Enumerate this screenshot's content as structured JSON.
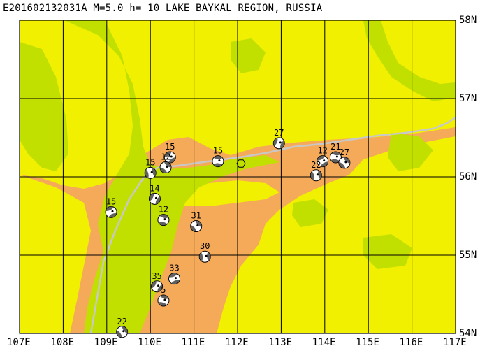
{
  "title": "E201602132031A M=5.0 h= 10 LAKE BAYKAL REGION, RUSSIA",
  "colors": {
    "high": "#f5aa5a",
    "mid": "#f0f000",
    "low": "#c2e000",
    "border": "#c8c8c8",
    "grid": "#000000"
  },
  "axes": {
    "lat_labels": [
      "58N",
      "57N",
      "56N",
      "55N",
      "54N"
    ],
    "lon_labels": [
      "107E",
      "108E",
      "109E",
      "110E",
      "111E",
      "112E",
      "113E",
      "114E",
      "115E",
      "116E",
      "117E"
    ],
    "lon_range": [
      107,
      117
    ],
    "lat_range": [
      54,
      58
    ]
  },
  "epicenter": {
    "lon": 112.08,
    "lat": 56.17,
    "icon": "hexagon-epicenter-icon"
  },
  "events": [
    {
      "label": "15",
      "lon": 110.45,
      "lat": 56.25
    },
    {
      "label": "15",
      "lon": 111.55,
      "lat": 56.2
    },
    {
      "label": "12",
      "lon": 110.35,
      "lat": 56.12
    },
    {
      "label": "15",
      "lon": 110.0,
      "lat": 56.05
    },
    {
      "label": "27",
      "lon": 112.95,
      "lat": 56.43
    },
    {
      "label": "12",
      "lon": 113.95,
      "lat": 56.2
    },
    {
      "label": "21",
      "lon": 114.25,
      "lat": 56.25
    },
    {
      "label": "27",
      "lon": 114.45,
      "lat": 56.18
    },
    {
      "label": "22",
      "lon": 113.8,
      "lat": 56.02
    },
    {
      "label": "14",
      "lon": 110.1,
      "lat": 55.72
    },
    {
      "label": "15",
      "lon": 109.1,
      "lat": 55.55
    },
    {
      "label": "12",
      "lon": 110.3,
      "lat": 55.45
    },
    {
      "label": "31",
      "lon": 111.05,
      "lat": 55.37
    },
    {
      "label": "30",
      "lon": 111.25,
      "lat": 54.98
    },
    {
      "label": "35",
      "lon": 110.15,
      "lat": 54.6
    },
    {
      "label": "33",
      "lon": 110.55,
      "lat": 54.7
    },
    {
      "label": "5",
      "lon": 110.3,
      "lat": 54.42
    },
    {
      "label": "22",
      "lon": 109.35,
      "lat": 54.02
    }
  ]
}
